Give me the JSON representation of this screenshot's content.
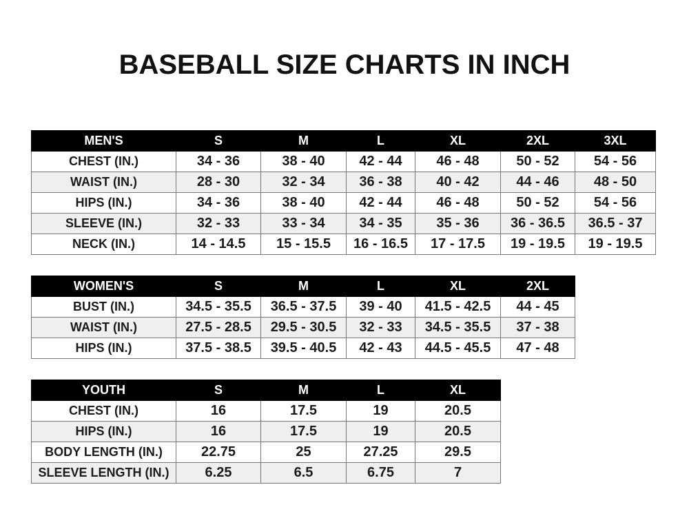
{
  "title": "BASEBALL SIZE CHARTS IN INCH",
  "men": {
    "header": [
      "MEN'S",
      "S",
      "M",
      "L",
      "XL",
      "2XL",
      "3XL"
    ],
    "rows": [
      [
        "CHEST (IN.)",
        "34 - 36",
        "38 - 40",
        "42 - 44",
        "46 - 48",
        "50 - 52",
        "54 - 56"
      ],
      [
        "WAIST (IN.)",
        "28 - 30",
        "32 - 34",
        "36 - 38",
        "40 - 42",
        "44 - 46",
        "48 - 50"
      ],
      [
        "HIPS (IN.)",
        "34 - 36",
        "38 - 40",
        "42 - 44",
        "46 - 48",
        "50 - 52",
        "54 - 56"
      ],
      [
        "SLEEVE (IN.)",
        "32 - 33",
        "33 - 34",
        "34 - 35",
        "35 - 36",
        "36 - 36.5",
        "36.5 - 37"
      ],
      [
        "NECK (IN.)",
        "14 - 14.5",
        "15 - 15.5",
        "16 - 16.5",
        "17 - 17.5",
        "19 - 19.5",
        "19 - 19.5"
      ]
    ]
  },
  "women": {
    "header": [
      "WOMEN'S",
      "S",
      "M",
      "L",
      "XL",
      "2XL"
    ],
    "rows": [
      [
        "BUST (IN.)",
        "34.5 - 35.5",
        "36.5 - 37.5",
        "39 - 40",
        "41.5 - 42.5",
        "44 - 45"
      ],
      [
        "WAIST (IN.)",
        "27.5 - 28.5",
        "29.5 - 30.5",
        "32 - 33",
        "34.5 - 35.5",
        "37 - 38"
      ],
      [
        "HIPS (IN.)",
        "37.5 - 38.5",
        "39.5 - 40.5",
        "42 - 43",
        "44.5 - 45.5",
        "47 - 48"
      ]
    ]
  },
  "youth": {
    "header": [
      "YOUTH",
      "S",
      "M",
      "L",
      "XL"
    ],
    "rows": [
      [
        "CHEST (IN.)",
        "16",
        "17.5",
        "19",
        "20.5"
      ],
      [
        "HIPS (IN.)",
        "16",
        "17.5",
        "19",
        "20.5"
      ],
      [
        "BODY LENGTH (IN.)",
        "22.75",
        "25",
        "27.25",
        "29.5"
      ],
      [
        "SLEEVE LENGTH (IN.)",
        "6.25",
        "6.5",
        "6.75",
        "7"
      ]
    ]
  }
}
